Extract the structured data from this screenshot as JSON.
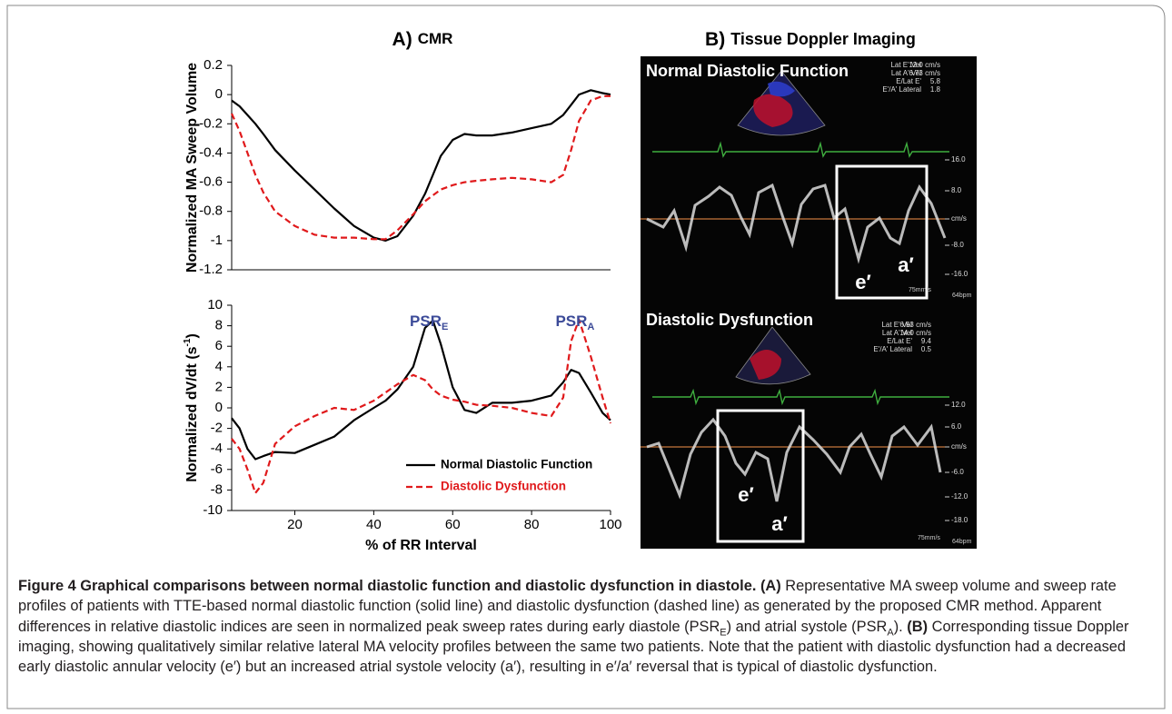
{
  "panel_a": {
    "label": "A)",
    "title": "CMR"
  },
  "chart_data": [
    {
      "type": "line",
      "ylabel": {
        "text": "Normalized MA Sweep Volume"
      },
      "x": [
        4,
        6,
        8,
        10,
        12,
        15,
        20,
        25,
        30,
        35,
        40,
        43,
        46,
        50,
        53,
        55,
        57,
        60,
        63,
        66,
        70,
        75,
        80,
        85,
        88,
        90,
        92,
        95,
        98,
        100
      ],
      "xlim": [
        4,
        100
      ],
      "ylim": [
        -1.2,
        0.2
      ],
      "yticks": [
        0.2,
        0,
        -0.2,
        -0.4,
        -0.6,
        -0.8,
        -1,
        -1.2
      ],
      "series": [
        {
          "name": "Normal Diastolic Function",
          "color": "#000000",
          "dash": "solid",
          "values": [
            -0.04,
            -0.08,
            -0.14,
            -0.2,
            -0.27,
            -0.38,
            -0.52,
            -0.65,
            -0.78,
            -0.9,
            -0.98,
            -1.0,
            -0.97,
            -0.83,
            -0.68,
            -0.55,
            -0.42,
            -0.31,
            -0.27,
            -0.28,
            -0.28,
            -0.26,
            -0.23,
            -0.2,
            -0.14,
            -0.07,
            0.0,
            0.03,
            0.01,
            0.0
          ]
        },
        {
          "name": "Diastolic Dysfunction",
          "color": "#e0191b",
          "dash": "dashed",
          "values": [
            -0.13,
            -0.25,
            -0.4,
            -0.55,
            -0.67,
            -0.8,
            -0.9,
            -0.96,
            -0.98,
            -0.98,
            -0.99,
            -0.99,
            -0.93,
            -0.82,
            -0.73,
            -0.69,
            -0.65,
            -0.62,
            -0.6,
            -0.59,
            -0.58,
            -0.57,
            -0.58,
            -0.6,
            -0.55,
            -0.38,
            -0.18,
            -0.04,
            -0.01,
            -0.01
          ]
        }
      ]
    },
    {
      "type": "line",
      "ylabel": {
        "text": "Normalized dV/dt (s",
        "sup": "-1",
        "end": ")"
      },
      "xlabel": "% of RR Interval",
      "x": [
        4,
        6,
        8,
        10,
        12,
        15,
        20,
        25,
        30,
        35,
        40,
        43,
        46,
        50,
        53,
        55,
        57,
        60,
        63,
        66,
        70,
        75,
        80,
        85,
        88,
        90,
        92,
        95,
        98,
        100
      ],
      "xlim": [
        4,
        100
      ],
      "xticks": [
        20,
        40,
        60,
        80,
        100
      ],
      "ylim": [
        -10,
        10
      ],
      "yticks": [
        -10,
        -8,
        -6,
        -4,
        -2,
        0,
        2,
        4,
        6,
        8,
        10
      ],
      "legend": "lower right",
      "annotations": [
        {
          "text": "PSR",
          "sub": "E",
          "x": 54,
          "color": "#3b4a98"
        },
        {
          "text": "PSR",
          "sub": "A",
          "x": 91,
          "color": "#3b4a98"
        }
      ],
      "series": [
        {
          "name": "Normal Diastolic Function",
          "color": "#000000",
          "dash": "solid",
          "values": [
            -1,
            -2,
            -4,
            -5,
            -4.7,
            -4.3,
            -4.4,
            -3.6,
            -2.8,
            -1.2,
            0,
            0.7,
            1.8,
            4,
            7.8,
            8.5,
            6.2,
            2,
            -0.2,
            -0.5,
            0.5,
            0.5,
            0.7,
            1.2,
            2.5,
            3.7,
            3.4,
            1.5,
            -0.5,
            -1.2
          ]
        },
        {
          "name": "Diastolic Dysfunction",
          "color": "#e0191b",
          "dash": "dashed",
          "values": [
            -3,
            -4,
            -6,
            -8.3,
            -7.3,
            -3.5,
            -1.8,
            -0.8,
            0,
            -0.2,
            0.7,
            1.5,
            2.3,
            3.2,
            2.7,
            1.8,
            1.2,
            0.8,
            0.6,
            0.3,
            0.2,
            0,
            -0.5,
            -0.8,
            1,
            6.5,
            8.6,
            5,
            1,
            -1.5
          ]
        }
      ]
    }
  ],
  "panel_b": {
    "label": "B)",
    "title": "Tissue Doppler Imaging",
    "views": [
      {
        "title": "Normal Diastolic Function",
        "measurements": [
          [
            "Lat E' Vel",
            "12.0 cm/s"
          ],
          [
            "Lat A' Vel",
            "6.73 cm/s"
          ],
          [
            "E/Lat E'",
            "5.8"
          ],
          [
            "E'/A' Lateral",
            "1.8"
          ]
        ],
        "scale": [
          "16.0",
          "8.0",
          "cm/s",
          "-8.0",
          "-16.0"
        ],
        "speed": "75mm/s",
        "rate": "64bpm",
        "e": "e′",
        "a": "a′"
      },
      {
        "title": "Diastolic Dysfunction",
        "measurements": [
          [
            "Lat E' Vel",
            "6.53 cm/s"
          ],
          [
            "Lat A' Vel",
            "14.0 cm/s"
          ],
          [
            "E/Lat E'",
            "9.4"
          ],
          [
            "E'/A' Lateral",
            "0.5"
          ]
        ],
        "scale": [
          "12.0",
          "6.0",
          "cm/s",
          "-6.0",
          "-12.0",
          "-18.0"
        ],
        "speed": "75mm/s",
        "rate": "64bpm",
        "e": "e′",
        "a": "a′"
      }
    ]
  },
  "caption": [
    {
      "text": "Figure 4 Graphical comparisons between normal diastolic function and diastolic dysfunction in diastole. (A)",
      "bold": true
    },
    {
      "text": " Representative MA sweep volume and sweep rate profiles of patients with TTE-based normal diastolic function (solid line) and diastolic dysfunction (dashed line) as generated by the proposed CMR method. Apparent differences in relative diastolic indices are seen in normalized peak sweep rates during early diastole (PSR"
    },
    {
      "text": "E",
      "sub": true
    },
    {
      "text": ") and atrial systole (PSR"
    },
    {
      "text": "A",
      "sub": true
    },
    {
      "text": "). "
    },
    {
      "text": "(B)",
      "bold": true
    },
    {
      "text": " Corresponding tissue Doppler imaging, showing qualitatively similar relative lateral MA velocity profiles between the same two patients. Note that the patient with diastolic dysfunction had a decreased early diastolic annular velocity (e′) but an increased atrial systole velocity (a′), resulting in e′/a′ reversal that is typical of diastolic dysfunction."
    }
  ]
}
